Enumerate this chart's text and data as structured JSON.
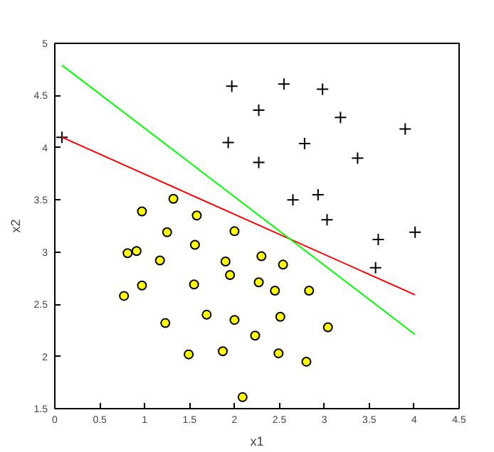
{
  "chart_data": {
    "type": "scatter",
    "xlabel": "x1",
    "ylabel": "x2",
    "xlim": [
      0,
      4.5
    ],
    "xticks": [
      0,
      0.5,
      1,
      1.5,
      2,
      2.5,
      3,
      3.5,
      4,
      4.5
    ],
    "ylim": [
      1.5,
      5
    ],
    "yticks": [
      1.5,
      2,
      2.5,
      3,
      3.5,
      4,
      4.5,
      5
    ],
    "grid": false,
    "series": [
      {
        "marker": "cross",
        "color": "#000000",
        "x": [
          0.08,
          1.97,
          2.55,
          2.98,
          2.27,
          3.18,
          3.9,
          1.93,
          2.78,
          2.27,
          3.37,
          2.65,
          2.93,
          3.03,
          3.6,
          4.01,
          3.57
        ],
        "values": [
          4.1,
          4.59,
          4.61,
          4.56,
          4.36,
          4.29,
          4.18,
          4.05,
          4.04,
          3.86,
          3.9,
          3.5,
          3.55,
          3.31,
          3.12,
          3.19,
          2.85
        ]
      },
      {
        "marker": "circle",
        "color": "#ffff00",
        "x": [
          1.32,
          0.97,
          1.58,
          1.25,
          2.0,
          1.56,
          0.81,
          0.91,
          1.17,
          1.9,
          2.3,
          2.54,
          1.95,
          0.97,
          1.55,
          2.27,
          0.77,
          2.45,
          2.83,
          1.69,
          1.23,
          2.0,
          2.51,
          3.04,
          2.23,
          1.49,
          1.87,
          2.49,
          2.8,
          2.09
        ],
        "values": [
          3.51,
          3.39,
          3.35,
          3.19,
          3.2,
          3.07,
          2.99,
          3.01,
          2.92,
          2.91,
          2.96,
          2.88,
          2.78,
          2.68,
          2.69,
          2.71,
          2.58,
          2.63,
          2.63,
          2.4,
          2.32,
          2.35,
          2.38,
          2.28,
          2.2,
          2.02,
          2.05,
          2.03,
          1.95,
          1.61
        ]
      },
      {
        "type": "line",
        "color": "#ff0000",
        "x": [
          0.08,
          4.01
        ],
        "values": [
          4.1,
          2.59
        ]
      },
      {
        "type": "line",
        "color": "#00ff00",
        "x": [
          0.08,
          4.01
        ],
        "values": [
          4.79,
          2.21
        ]
      }
    ]
  }
}
